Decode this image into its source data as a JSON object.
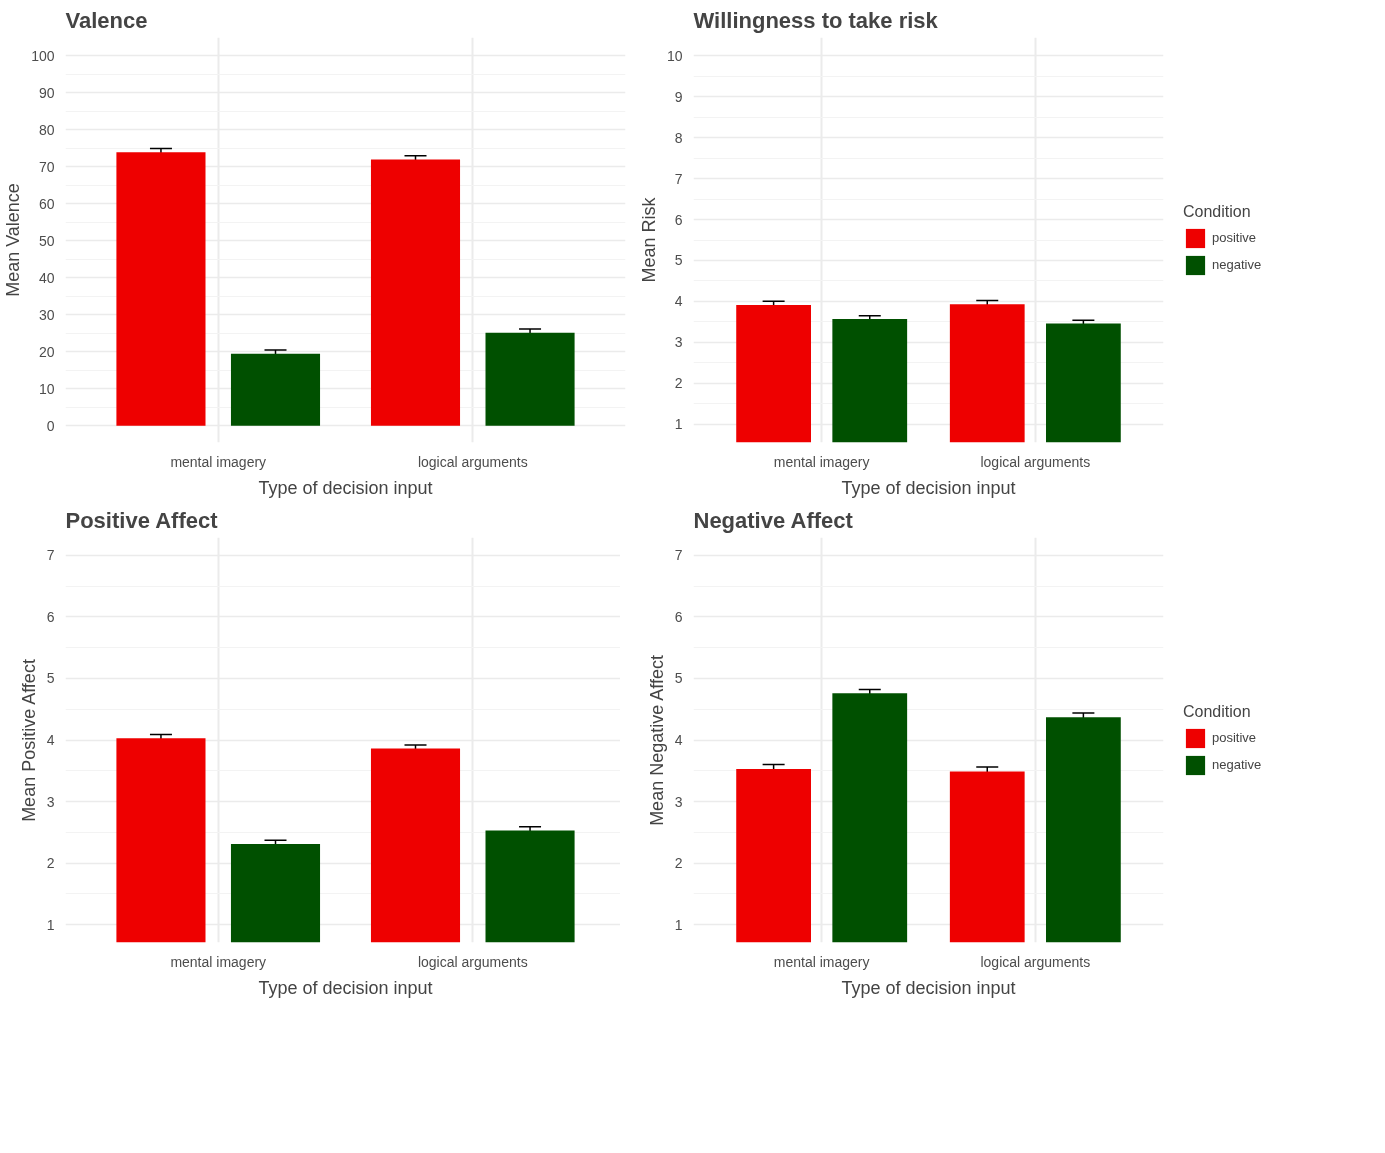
{
  "chart_data": [
    {
      "type": "bar",
      "title": "Valence",
      "xlabel": "Type of decision input",
      "ylabel": "Mean Valence",
      "categories": [
        "mental imagery",
        "logical arguments"
      ],
      "series": [
        {
          "color": "#ee0000",
          "values": [
            74,
            72
          ],
          "errors": [
            1,
            1
          ]
        },
        {
          "color": "#005000",
          "values": [
            19.5,
            25.2
          ],
          "errors": [
            1,
            1
          ]
        }
      ],
      "ylim": [
        -4.5,
        105
      ],
      "yticks": [
        0,
        10,
        20,
        30,
        40,
        50,
        60,
        70,
        80,
        90,
        100
      ],
      "grid": true,
      "legend": false
    },
    {
      "type": "bar",
      "title": "Willingness to take risk",
      "xlabel": "Type of decision input",
      "ylabel": "Mean Risk",
      "categories": [
        "mental imagery",
        "logical arguments"
      ],
      "series": [
        {
          "name": "positive",
          "color": "#ee0000",
          "values": [
            3.91,
            3.93
          ],
          "errors": [
            0.09,
            0.09
          ]
        },
        {
          "name": "negative",
          "color": "#005000",
          "values": [
            3.57,
            3.46
          ],
          "errors": [
            0.08,
            0.08
          ]
        }
      ],
      "ylim": [
        0.55,
        10.45
      ],
      "yticks": [
        1,
        2,
        3,
        4,
        5,
        6,
        7,
        8,
        9,
        10
      ],
      "grid": true,
      "legend": "right",
      "legend_title": "Condition"
    },
    {
      "type": "bar",
      "title": "Positive Affect",
      "xlabel": "Type of decision input",
      "ylabel": "Mean Positive Affect",
      "categories": [
        "mental imagery",
        "logical arguments"
      ],
      "series": [
        {
          "color": "#ee0000",
          "values": [
            4.03,
            3.86
          ],
          "errors": [
            0.06,
            0.06
          ]
        },
        {
          "color": "#005000",
          "values": [
            2.31,
            2.53
          ],
          "errors": [
            0.06,
            0.06
          ]
        }
      ],
      "ylim": [
        0.71,
        7.29
      ],
      "yticks": [
        1,
        2,
        3,
        4,
        5,
        6,
        7
      ],
      "grid": true,
      "legend": false
    },
    {
      "type": "bar",
      "title": "Negative Affect",
      "xlabel": "Type of decision input",
      "ylabel": "Mean Negative Affect",
      "categories": [
        "mental imagery",
        "logical arguments"
      ],
      "series": [
        {
          "name": "positive",
          "color": "#ee0000",
          "values": [
            3.53,
            3.49
          ],
          "errors": [
            0.07,
            0.07
          ]
        },
        {
          "name": "negative",
          "color": "#005000",
          "values": [
            4.76,
            4.37
          ],
          "errors": [
            0.06,
            0.07
          ]
        }
      ],
      "ylim": [
        0.71,
        7.29
      ],
      "yticks": [
        1,
        2,
        3,
        4,
        5,
        6,
        7
      ],
      "grid": true,
      "legend": "right",
      "legend_title": "Condition"
    }
  ]
}
